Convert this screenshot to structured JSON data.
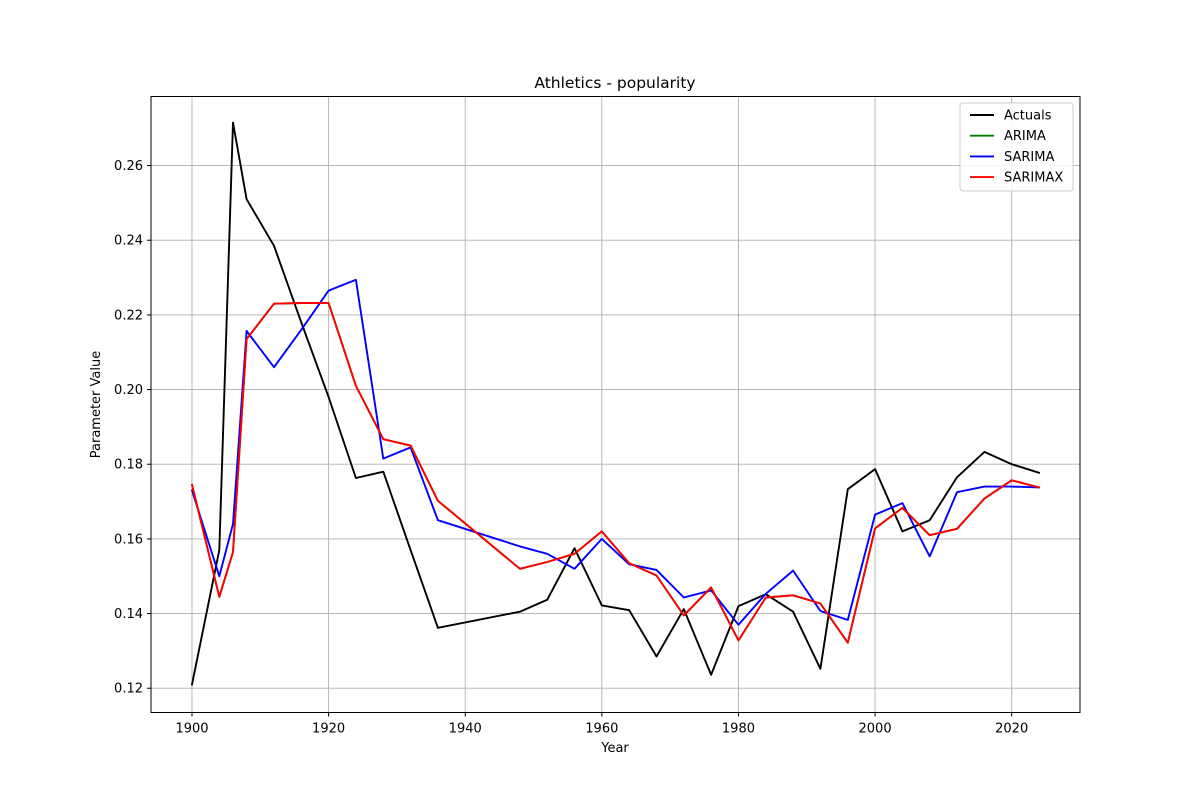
{
  "chart_data": {
    "type": "line",
    "title": "Athletics - popularity",
    "xlabel": "Year",
    "ylabel": "Parameter Value",
    "xlim": [
      1894,
      2030
    ],
    "ylim": [
      0.1135,
      0.2785
    ],
    "xticks": [
      1900,
      1920,
      1940,
      1960,
      1980,
      2000,
      2020
    ],
    "yticks": [
      0.12,
      0.14,
      0.16,
      0.18,
      0.2,
      0.22,
      0.24,
      0.26
    ],
    "ytick_labels": [
      "0.12",
      "0.14",
      "0.16",
      "0.18",
      "0.20",
      "0.22",
      "0.24",
      "0.26"
    ],
    "grid": true,
    "legend_position": "top-right",
    "series": [
      {
        "name": "Actuals",
        "color": "#000000",
        "points": [
          [
            1900,
            0.121
          ],
          [
            1904,
            0.157
          ],
          [
            1906,
            0.2715
          ],
          [
            1908,
            0.251
          ],
          [
            1912,
            0.2385
          ],
          [
            1916,
            0.218
          ],
          [
            1920,
            0.198
          ],
          [
            1924,
            0.1763
          ],
          [
            1928,
            0.178
          ],
          [
            1932,
            0.157
          ],
          [
            1936,
            0.1362
          ],
          [
            1948,
            0.1405
          ],
          [
            1952,
            0.1437
          ],
          [
            1956,
            0.1575
          ],
          [
            1960,
            0.1422
          ],
          [
            1964,
            0.1409
          ],
          [
            1968,
            0.1285
          ],
          [
            1972,
            0.1412
          ],
          [
            1976,
            0.1236
          ],
          [
            1980,
            0.142
          ],
          [
            1984,
            0.1452
          ],
          [
            1988,
            0.1405
          ],
          [
            1992,
            0.1252
          ],
          [
            1996,
            0.1733
          ],
          [
            2000,
            0.1787
          ],
          [
            2004,
            0.162
          ],
          [
            2008,
            0.165
          ],
          [
            2012,
            0.1765
          ],
          [
            2016,
            0.1833
          ],
          [
            2020,
            0.18
          ],
          [
            2024,
            0.1777
          ]
        ]
      },
      {
        "name": "ARIMA",
        "color": "#008000",
        "points": [
          [
            1900,
            0.1745
          ],
          [
            1904,
            0.1445
          ],
          [
            1906,
            0.1565
          ],
          [
            1908,
            0.2135
          ],
          [
            1912,
            0.223
          ],
          [
            1916,
            0.2232
          ],
          [
            1920,
            0.2232
          ],
          [
            1924,
            0.201
          ],
          [
            1928,
            0.1867
          ],
          [
            1932,
            0.185
          ],
          [
            1936,
            0.1702
          ],
          [
            1948,
            0.152
          ],
          [
            1952,
            0.1538
          ],
          [
            1956,
            0.156
          ],
          [
            1960,
            0.162
          ],
          [
            1964,
            0.1535
          ],
          [
            1968,
            0.1502
          ],
          [
            1972,
            0.1395
          ],
          [
            1976,
            0.147
          ],
          [
            1980,
            0.1328
          ],
          [
            1984,
            0.1443
          ],
          [
            1988,
            0.1449
          ],
          [
            1992,
            0.1427
          ],
          [
            1996,
            0.1322
          ],
          [
            2000,
            0.1628
          ],
          [
            2004,
            0.1683
          ],
          [
            2008,
            0.161
          ],
          [
            2012,
            0.1627
          ],
          [
            2016,
            0.1708
          ],
          [
            2020,
            0.1757
          ],
          [
            2024,
            0.1738
          ]
        ]
      },
      {
        "name": "SARIMA",
        "color": "#0000ff",
        "points": [
          [
            1900,
            0.173
          ],
          [
            1904,
            0.15
          ],
          [
            1906,
            0.164
          ],
          [
            1908,
            0.2157
          ],
          [
            1912,
            0.206
          ],
          [
            1916,
            0.216
          ],
          [
            1920,
            0.2265
          ],
          [
            1924,
            0.2294
          ],
          [
            1928,
            0.1815
          ],
          [
            1932,
            0.1845
          ],
          [
            1936,
            0.165
          ],
          [
            1948,
            0.158
          ],
          [
            1952,
            0.156
          ],
          [
            1956,
            0.152
          ],
          [
            1960,
            0.16
          ],
          [
            1964,
            0.1532
          ],
          [
            1968,
            0.1517
          ],
          [
            1972,
            0.1443
          ],
          [
            1976,
            0.1462
          ],
          [
            1980,
            0.137
          ],
          [
            1984,
            0.1453
          ],
          [
            1988,
            0.1515
          ],
          [
            1992,
            0.1407
          ],
          [
            1996,
            0.1383
          ],
          [
            2000,
            0.1665
          ],
          [
            2004,
            0.1696
          ],
          [
            2008,
            0.1553
          ],
          [
            2012,
            0.1725
          ],
          [
            2016,
            0.174
          ],
          [
            2020,
            0.174
          ],
          [
            2024,
            0.1738
          ]
        ]
      },
      {
        "name": "SARIMAX",
        "color": "#ff0000",
        "points": [
          [
            1900,
            0.1745
          ],
          [
            1904,
            0.1445
          ],
          [
            1906,
            0.1565
          ],
          [
            1908,
            0.2135
          ],
          [
            1912,
            0.223
          ],
          [
            1916,
            0.2232
          ],
          [
            1920,
            0.2232
          ],
          [
            1924,
            0.201
          ],
          [
            1928,
            0.1867
          ],
          [
            1932,
            0.185
          ],
          [
            1936,
            0.1702
          ],
          [
            1948,
            0.152
          ],
          [
            1952,
            0.1538
          ],
          [
            1956,
            0.156
          ],
          [
            1960,
            0.162
          ],
          [
            1964,
            0.1535
          ],
          [
            1968,
            0.1502
          ],
          [
            1972,
            0.1395
          ],
          [
            1976,
            0.147
          ],
          [
            1980,
            0.1328
          ],
          [
            1984,
            0.1443
          ],
          [
            1988,
            0.1449
          ],
          [
            1992,
            0.1427
          ],
          [
            1996,
            0.1322
          ],
          [
            2000,
            0.1628
          ],
          [
            2004,
            0.1683
          ],
          [
            2008,
            0.161
          ],
          [
            2012,
            0.1627
          ],
          [
            2016,
            0.1708
          ],
          [
            2020,
            0.1757
          ],
          [
            2024,
            0.1738
          ]
        ]
      }
    ]
  }
}
